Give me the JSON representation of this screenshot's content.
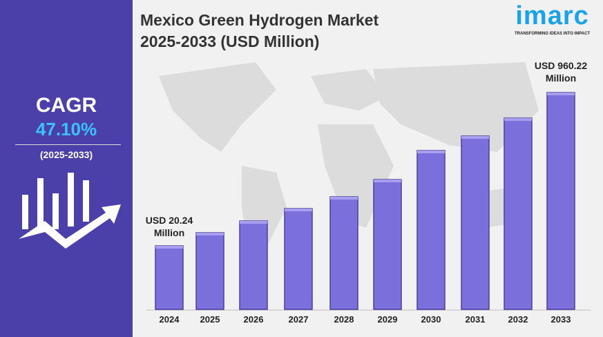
{
  "left_panel": {
    "cagr_label": "CAGR",
    "cagr_value": "47.10%",
    "period": "(2025-2033)",
    "icon": "growth-chart-arrow-icon"
  },
  "logo": {
    "word": "imarc",
    "tagline": "TRANSFORMING IDEAS INTO IMPACT"
  },
  "colors": {
    "panel": "#4b3fa9",
    "bar": "#7b6fdc",
    "accent": "#3cc3f5"
  },
  "chart_data": {
    "type": "bar",
    "title_line1": "Mexico Green Hydrogen Market",
    "title_line2": "2025-2033 (USD Million)",
    "categories": [
      "2024",
      "2025",
      "2026",
      "2027",
      "2028",
      "2029",
      "2030",
      "2031",
      "2032",
      "2033"
    ],
    "values": [
      20.24,
      null,
      null,
      null,
      null,
      null,
      null,
      null,
      null,
      960.22
    ],
    "annotations": [
      {
        "category": "2024",
        "line1": "USD 20.24",
        "line2": "Million"
      },
      {
        "category": "2033",
        "line1": "USD 960.22",
        "line2": "Million"
      }
    ],
    "grid": false,
    "legend": "none"
  }
}
